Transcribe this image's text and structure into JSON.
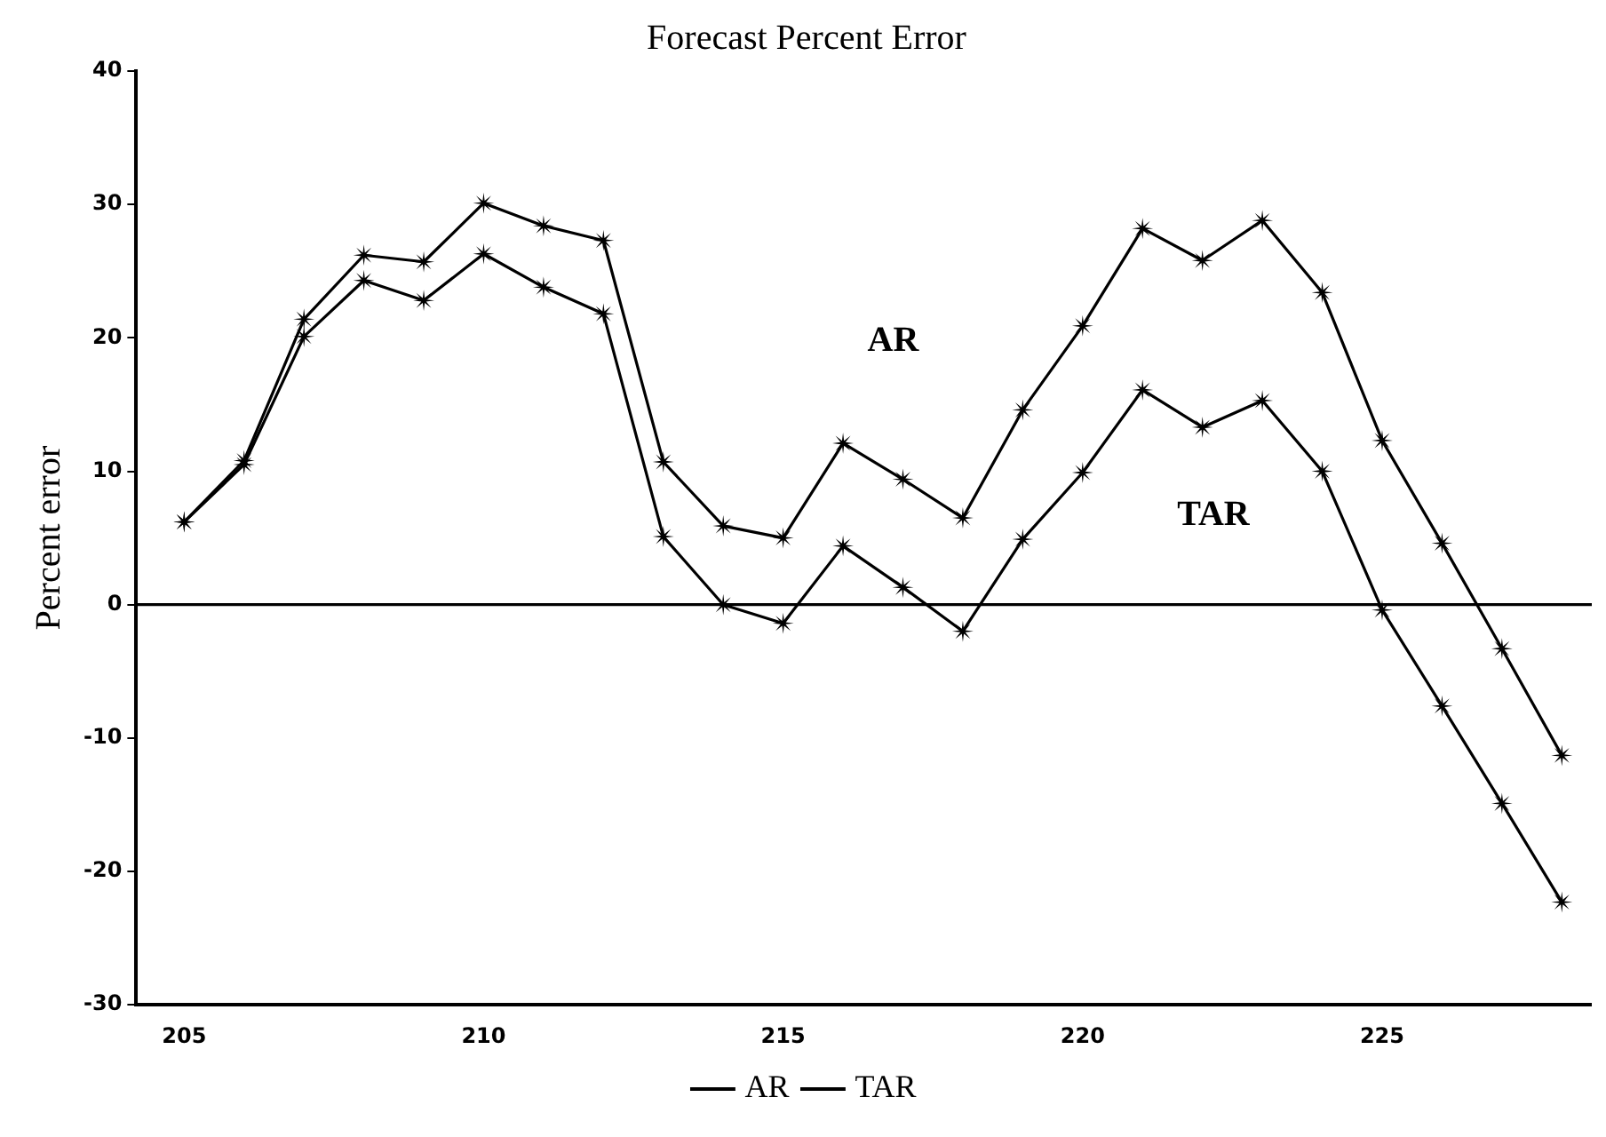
{
  "chart_data": {
    "type": "line",
    "title": "Forecast Percent Error",
    "ylabel": "Percent error",
    "x": [
      205,
      206,
      207,
      208,
      209,
      210,
      211,
      212,
      213,
      214,
      215,
      216,
      217,
      218,
      219,
      220,
      221,
      222,
      223,
      224,
      225,
      226,
      227,
      228
    ],
    "series": [
      {
        "name": "AR",
        "color": "#000000",
        "values": [
          6.2,
          10.8,
          21.4,
          26.2,
          25.7,
          30.1,
          28.4,
          27.3,
          10.7,
          5.9,
          5.0,
          12.1,
          9.4,
          6.5,
          14.6,
          20.9,
          28.2,
          25.8,
          28.8,
          23.4,
          12.3,
          4.6,
          -3.3,
          -11.3
        ]
      },
      {
        "name": "TAR",
        "color": "#000000",
        "values": [
          6.2,
          10.5,
          20.1,
          24.3,
          22.8,
          26.3,
          23.8,
          21.8,
          5.1,
          0.0,
          -1.4,
          4.4,
          1.3,
          -2.0,
          4.9,
          9.9,
          16.1,
          13.3,
          15.3,
          10.0,
          -0.4,
          -7.6,
          -14.9,
          -22.3
        ]
      }
    ],
    "annotations": [
      "AR",
      "TAR"
    ],
    "xlim": [
      204.2,
      228.5
    ],
    "xticks": [
      205,
      210,
      215,
      220,
      225
    ],
    "ylim": [
      -30,
      40
    ],
    "yticks": [
      -30,
      -20,
      -10,
      0,
      10,
      20,
      30,
      40
    ],
    "ref_lines": [
      {
        "axis": "y",
        "value": 0
      }
    ],
    "grid": false,
    "legend": "bottom",
    "marker": "star",
    "line_style": "solid"
  }
}
